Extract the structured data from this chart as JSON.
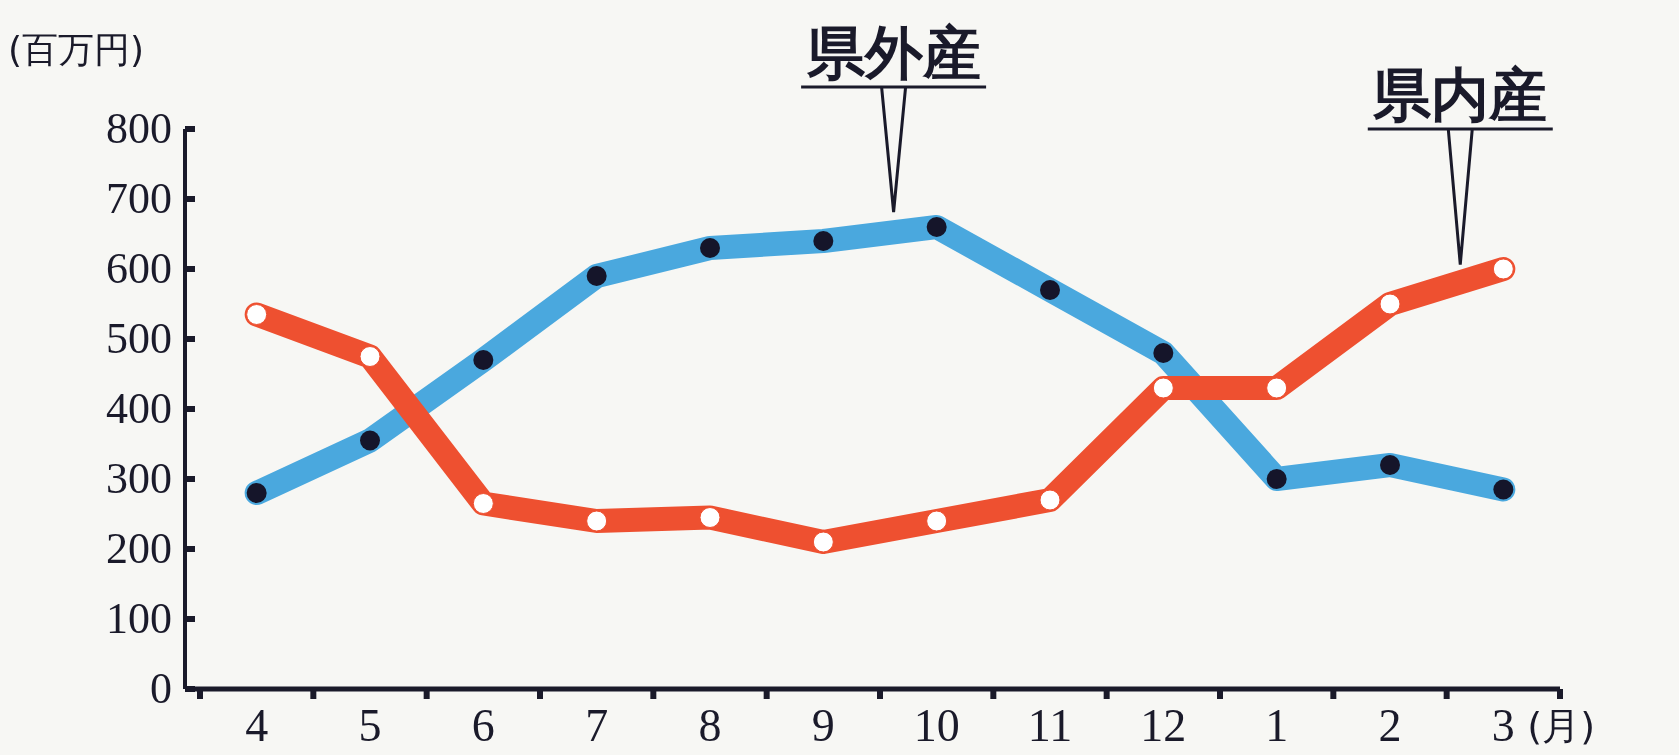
{
  "chart_data": {
    "type": "line",
    "ylabel": "(百万円)",
    "xlabel": "(月)",
    "categories": [
      "4",
      "5",
      "6",
      "7",
      "8",
      "9",
      "10",
      "11",
      "12",
      "1",
      "2",
      "3"
    ],
    "series": [
      {
        "name": "県外産",
        "color": "#4aa8de",
        "values": [
          280,
          355,
          470,
          590,
          630,
          640,
          660,
          570,
          480,
          300,
          320,
          285
        ]
      },
      {
        "name": "県内産",
        "color": "#ee5030",
        "values": [
          535,
          475,
          265,
          240,
          245,
          210,
          240,
          270,
          430,
          430,
          550,
          600
        ]
      }
    ],
    "ylim": [
      0,
      800
    ],
    "yticks": [
      0,
      100,
      200,
      300,
      400,
      500,
      600,
      700,
      800
    ],
    "marker": "circle",
    "legend": false,
    "grid": false
  }
}
